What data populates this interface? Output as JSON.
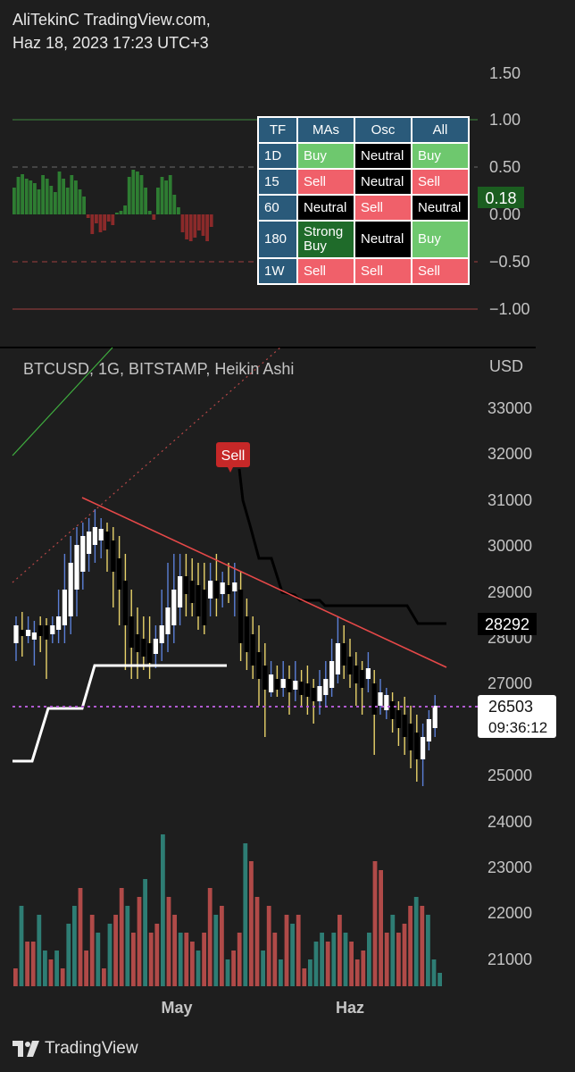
{
  "header": {
    "line1": "AliTekinC TradingView.com,",
    "line2": "Haz 18, 2023 17:23 UTC+3"
  },
  "oscillator": {
    "axis_labels": [
      "1.50",
      "1.00",
      "0.50",
      "0.00",
      "−0.50",
      "−1.00"
    ],
    "current_value": "0.18",
    "current_color": "#1b5e20"
  },
  "table": {
    "headers": [
      "TF",
      "MAs",
      "Osc",
      "All"
    ],
    "rows": [
      {
        "tf": "1D",
        "mas": "Buy",
        "mas_c": "buy",
        "osc": "Neutral",
        "osc_c": "neutral",
        "all": "Buy",
        "all_c": "buy"
      },
      {
        "tf": "15",
        "mas": "Sell",
        "mas_c": "sell",
        "osc": "Neutral",
        "osc_c": "neutral",
        "all": "Sell",
        "all_c": "sell"
      },
      {
        "tf": "60",
        "mas": "Neutral",
        "mas_c": "neutral",
        "osc": "Sell",
        "osc_c": "sell",
        "all": "Neutral",
        "all_c": "neutral"
      },
      {
        "tf": "180",
        "mas": "Strong\nBuy",
        "mas_c": "strongbuy",
        "osc": "Neutral",
        "osc_c": "neutral",
        "all": "Buy",
        "all_c": "buy"
      },
      {
        "tf": "1W",
        "mas": "Sell",
        "mas_c": "sell",
        "osc": "Sell",
        "osc_c": "sell",
        "all": "Sell",
        "all_c": "sell"
      }
    ]
  },
  "price": {
    "symbol_line": "BTCUSD, 1G, BITSTAMP, Heikin Ashi",
    "currency": "USD",
    "axis_labels": [
      "33000",
      "32000",
      "31000",
      "30000",
      "29000",
      "28000",
      "27000",
      "26000",
      "25000",
      "24000",
      "23000",
      "22000",
      "21000"
    ],
    "sell_label": "Sell",
    "line_value": "28292",
    "last_price": "26503",
    "countdown": "09:36:12"
  },
  "time_axis": [
    "May",
    "Haz"
  ],
  "footer": {
    "brand": "TradingView"
  },
  "colors": {
    "up": "#ffffff",
    "down": "#000000",
    "wick_up": "#5b7fd6",
    "wick_down": "#e8d26a",
    "vol_up": "#2e7d74",
    "vol_down": "#b04a48",
    "osc_pos": "#2e7d32",
    "osc_neg": "#8b2a2a"
  }
}
